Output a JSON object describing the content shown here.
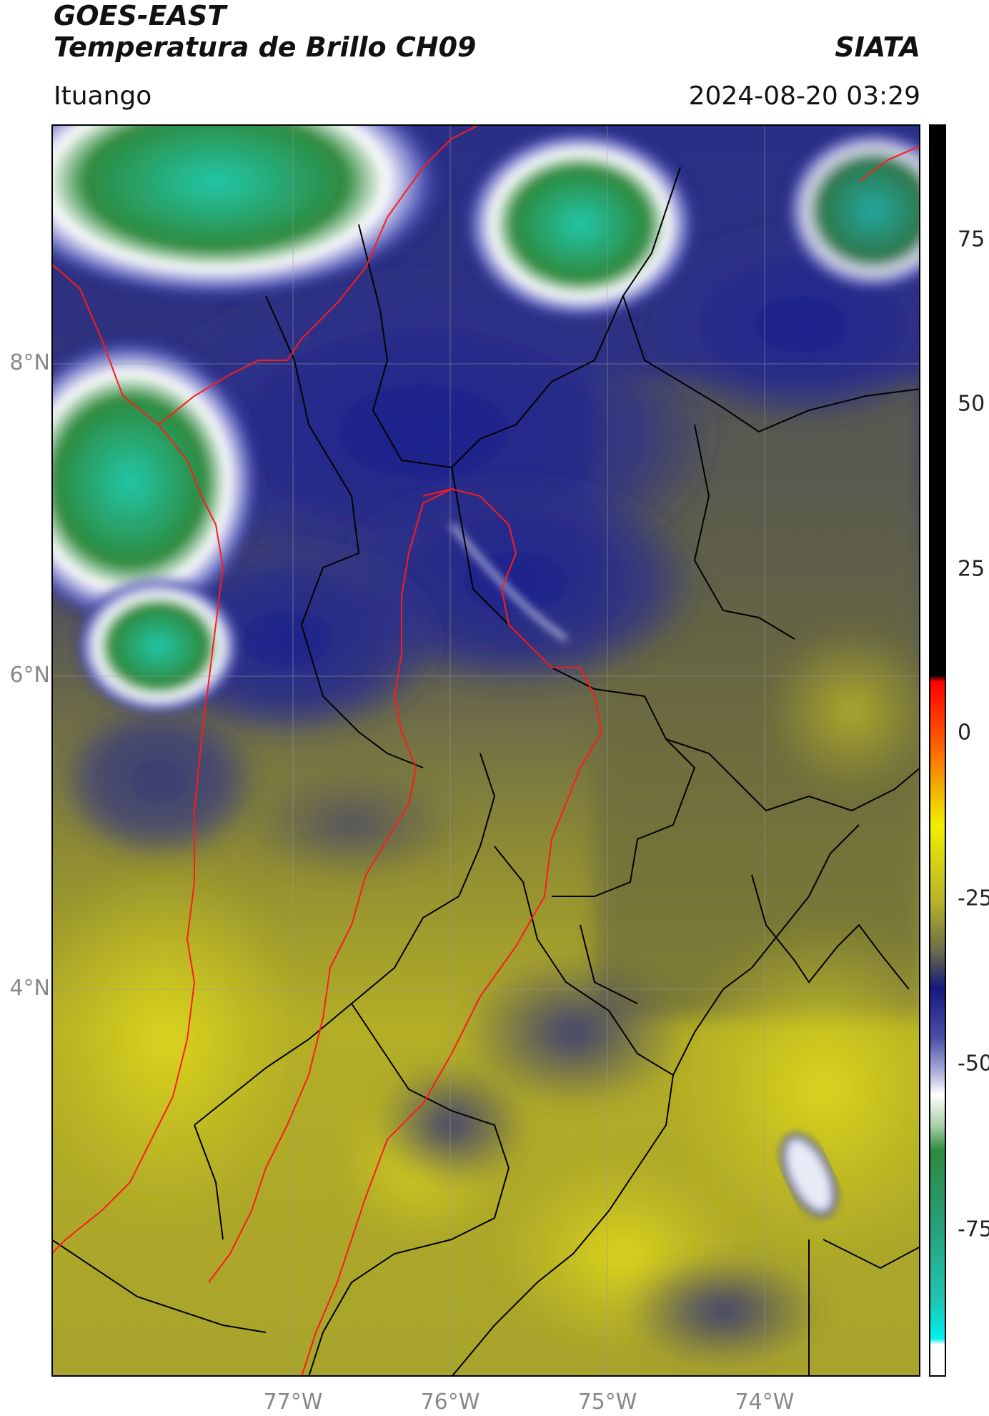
{
  "header": {
    "satellite": "GOES-EAST",
    "product": "Temperatura de Brillo CH09",
    "agency": "SIATA",
    "region": "Ituango",
    "datetime": "2024-08-20 03:29"
  },
  "map": {
    "lat_labels": [
      "8°N",
      "6°N",
      "4°N"
    ],
    "lon_labels": [
      "77°W",
      "76°W",
      "75°W",
      "74°W"
    ],
    "colors": {
      "cold_cloud_green": "#2e8a3e",
      "turquoise": "#22c6a8",
      "deep_blue": "#11157a",
      "olive": "#6e6e3a",
      "yellow": "#c9c41e",
      "highlight_boundary": "#ff0000",
      "admin_boundary": "#000000"
    }
  },
  "colorbar": {
    "ticks": [
      "75",
      "50",
      "25",
      "0",
      "-25",
      "-50",
      "-75"
    ],
    "units_hint": "brightness temperature (°C)"
  }
}
